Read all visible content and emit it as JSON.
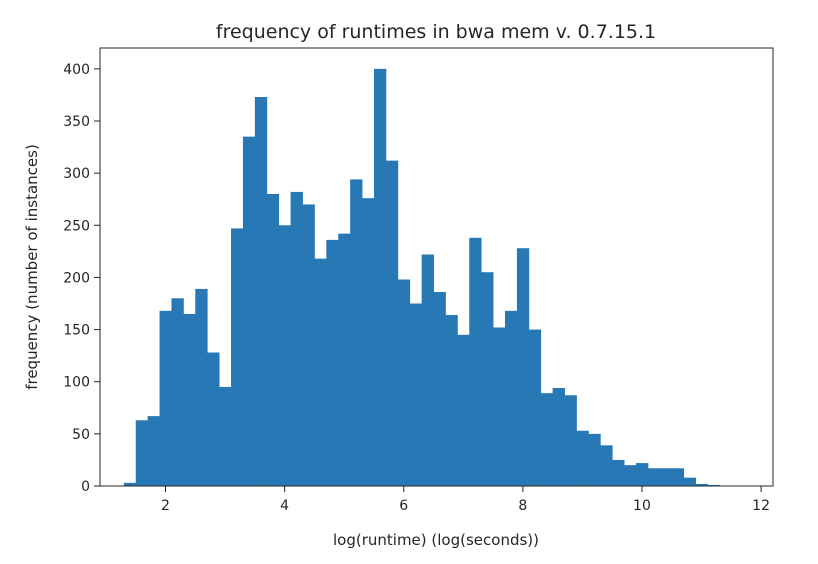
{
  "chart_data": {
    "type": "bar",
    "title": "frequency of runtimes in bwa mem v. 0.7.15.1",
    "xlabel": "log(runtime) (log(seconds))",
    "ylabel": "frequency (number of instances)",
    "xlim": [
      0.9,
      12.2
    ],
    "ylim": [
      0,
      420
    ],
    "grid": false,
    "bar_color": "#2878b5",
    "xticks": [
      "2",
      "4",
      "6",
      "8",
      "10",
      "12"
    ],
    "yticks": [
      "0",
      "50",
      "100",
      "150",
      "200",
      "250",
      "300",
      "350",
      "400"
    ],
    "bin_start": 1.3,
    "bin_width": 0.2,
    "values": [
      3,
      63,
      67,
      168,
      180,
      165,
      189,
      128,
      95,
      247,
      335,
      373,
      280,
      250,
      282,
      270,
      218,
      236,
      242,
      294,
      276,
      400,
      312,
      198,
      175,
      222,
      186,
      164,
      145,
      238,
      205,
      152,
      168,
      228,
      150,
      89,
      94,
      87,
      53,
      50,
      39,
      25,
      20,
      22,
      17,
      17,
      17,
      8,
      2,
      1
    ]
  }
}
